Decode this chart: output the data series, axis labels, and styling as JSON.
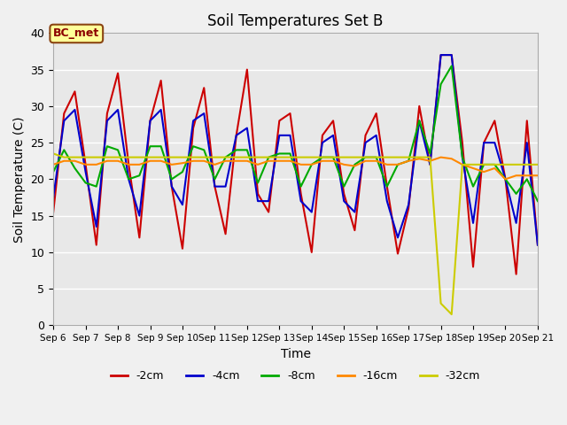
{
  "title": "Soil Temperatures Set B",
  "xlabel": "Time",
  "ylabel": "Soil Temperature (C)",
  "ylim": [
    0,
    40
  ],
  "xlim_days": [
    6,
    21
  ],
  "background_color": "#e8e8e8",
  "grid_color": "#ffffff",
  "annotation_label": "BC_met",
  "annotation_box_color": "#ffff99",
  "annotation_box_edge": "#8B4513",
  "annotation_text_color": "#8B0000",
  "colors": {
    "-2cm": "#cc0000",
    "-4cm": "#0000cc",
    "-8cm": "#00aa00",
    "-16cm": "#ff8800",
    "-32cm": "#cccc00"
  },
  "legend_labels": [
    "-2cm",
    "-4cm",
    "-8cm",
    "-16cm",
    "-32cm"
  ],
  "x_tick_labels": [
    "Sep 6",
    "Sep 7",
    "Sep 8",
    "Sep 9",
    "Sep 10",
    "Sep 11",
    "Sep 12",
    "Sep 13",
    "Sep 14",
    "Sep 15",
    "Sep 16",
    "Sep 17",
    "Sep 18",
    "Sep 19",
    "Sep 20",
    "Sep 21"
  ],
  "series": {
    "-2cm": [
      15.5,
      29,
      32,
      22,
      11,
      29,
      34.5,
      22,
      12,
      28,
      33.5,
      19,
      10.5,
      27,
      32.5,
      19,
      12.5,
      26,
      35,
      18,
      15.5,
      28,
      29,
      18,
      10,
      26,
      28,
      18,
      13,
      26,
      29,
      19,
      9.8,
      16,
      30,
      22,
      37,
      37,
      25,
      8,
      25,
      28,
      20,
      7,
      28,
      11
    ],
    "-4cm": [
      17.5,
      28,
      29.5,
      21,
      13.5,
      28,
      29.5,
      20,
      15,
      28,
      29.5,
      19,
      16.5,
      28,
      29,
      19,
      19,
      26,
      27,
      17,
      17,
      26,
      26,
      17,
      15.5,
      25,
      26,
      17,
      15.5,
      25,
      26,
      17,
      12,
      16.5,
      28,
      22,
      37,
      37,
      23,
      14,
      25,
      25,
      20,
      14,
      25,
      11
    ],
    "-8cm": [
      21,
      24,
      21.5,
      19.5,
      19,
      24.5,
      24,
      20,
      20.5,
      24.5,
      24.5,
      20,
      21,
      24.5,
      24,
      20,
      23,
      24,
      24,
      19.5,
      23,
      23.5,
      23.5,
      19,
      22,
      23,
      23,
      19,
      22,
      23,
      23,
      19,
      22,
      22.5,
      28,
      23.5,
      33,
      35.5,
      23,
      19,
      22,
      22,
      20,
      18,
      20,
      17
    ],
    "-16cm": [
      22,
      22.5,
      22.5,
      22,
      22,
      22.5,
      22.5,
      22,
      22,
      22.5,
      22.5,
      22,
      22.2,
      22.5,
      22.5,
      22,
      22.5,
      22.5,
      22.5,
      22,
      22.5,
      22.5,
      22.5,
      22,
      22,
      22.5,
      22.5,
      22,
      21.8,
      22.5,
      22.5,
      22,
      22,
      22.5,
      22.8,
      22.5,
      23,
      22.8,
      22,
      21.5,
      21,
      21.5,
      20,
      20.5,
      20.5,
      20.5
    ],
    "-32cm": [
      23.5,
      23,
      23,
      23,
      23,
      23,
      23,
      23,
      23,
      23,
      23,
      23,
      23,
      23,
      23,
      23,
      23,
      23,
      23,
      23,
      23,
      23,
      23,
      23,
      23,
      23,
      23,
      23,
      23,
      23,
      23,
      23,
      23,
      23,
      23,
      23,
      3,
      1.5,
      22,
      22,
      22,
      22,
      22,
      22,
      22,
      22
    ]
  }
}
